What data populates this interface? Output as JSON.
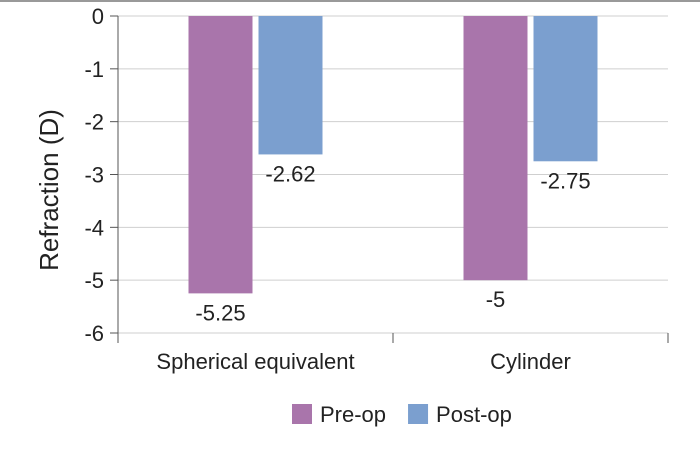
{
  "chart_data": {
    "type": "bar",
    "categories": [
      "Spherical equivalent",
      "Cylinder"
    ],
    "series": [
      {
        "name": "Pre-op",
        "values": [
          -5.25,
          -5
        ],
        "color": "#a975ab"
      },
      {
        "name": "Post-op",
        "values": [
          -2.62,
          -2.75
        ],
        "color": "#7b9fcf"
      }
    ],
    "data_labels": [
      [
        "-5.25",
        "-5"
      ],
      [
        "-2.62",
        "-2.75"
      ]
    ],
    "ylabel": "Refraction (D)",
    "ylim": [
      -6,
      0
    ],
    "yticks": [
      0,
      -1,
      -2,
      -3,
      -4,
      -5,
      -6
    ],
    "grid": true,
    "legend": "bottom"
  }
}
